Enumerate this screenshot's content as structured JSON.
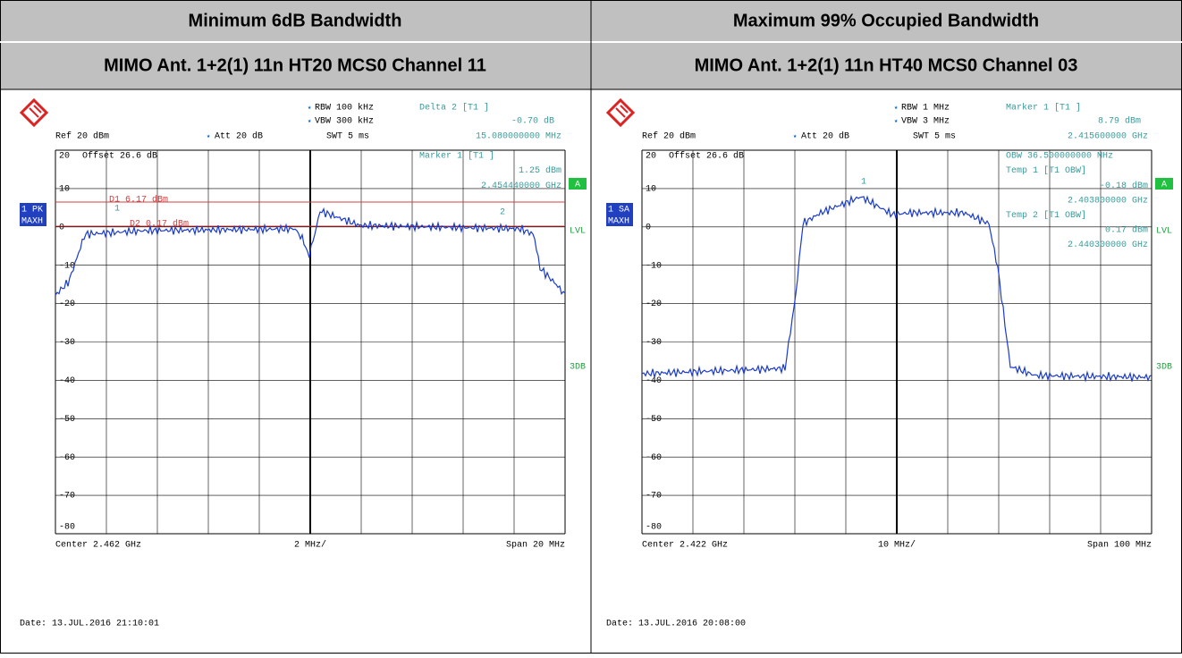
{
  "headers": [
    "Minimum 6dB Bandwidth",
    "Maximum 99% Occupied Bandwidth"
  ],
  "subheaders": [
    "MIMO Ant. 1+2(1) 11n HT20 MCS0 Channel 11",
    "MIMO Ant. 1+2(1) 11n HT40 MCS0 Channel 03"
  ],
  "panels": [
    {
      "rbw": "RBW 100 kHz",
      "vbw": "VBW 300 kHz",
      "swt": "SWT 5 ms",
      "ref": "Ref 20 dBm",
      "att": "Att 20 dB",
      "marker_head": "Delta 2 [T1 ]",
      "marker_val": "-0.70 dB",
      "marker_freq": "15.080000000 MHz",
      "offset": "Offset 26.6 dB",
      "ylabels": [
        "20",
        "10",
        "0",
        "-10",
        "-20",
        "-30",
        "-40",
        "-50",
        "-60",
        "-70",
        "-80"
      ],
      "inner": [
        "Marker 1 [T1 ]",
        "1.25 dBm",
        "2.454440000 GHz"
      ],
      "lines": [
        "D1 6.17 dBm",
        "D2 0.17 dBm"
      ],
      "markers": [
        "1",
        "2"
      ],
      "trace_label": "1 PK",
      "trace_mode": "MAXH",
      "a": "A",
      "lvl": "LVL",
      "db3": "3DB",
      "center": "Center 2.462 GHz",
      "div": "2 MHz/",
      "span": "Span 20 MHz",
      "date": "Date: 13.JUL.2016  21:10:01"
    },
    {
      "rbw": "RBW 1 MHz",
      "vbw": "VBW 3 MHz",
      "swt": "SWT 5 ms",
      "ref": "Ref 20 dBm",
      "att": "Att 20 dB",
      "marker_head": "Marker 1 [T1 ]",
      "marker_val": "8.79 dBm",
      "marker_freq": "2.415600000 GHz",
      "offset": "Offset 26.6 dB",
      "ylabels": [
        "20",
        "10",
        "0",
        "-10",
        "-20",
        "-30",
        "-40",
        "-50",
        "-60",
        "-70",
        "-80"
      ],
      "inner": [
        "OBW 36.500000000 MHz",
        "Temp 1 [T1 OBW]",
        "-0.18 dBm",
        "2.403800000 GHz",
        "Temp 2 [T1 OBW]",
        "0.17 dBm",
        "2.440300000 GHz"
      ],
      "lines": [],
      "markers": [
        "1"
      ],
      "trace_label": "1 SA",
      "trace_mode": "MAXH",
      "a": "A",
      "lvl": "LVL",
      "db3": "3DB",
      "center": "Center 2.422 GHz",
      "div": "10 MHz/",
      "span": "Span 100 MHz",
      "date": "Date: 13.JUL.2016  20:08:00"
    }
  ]
}
